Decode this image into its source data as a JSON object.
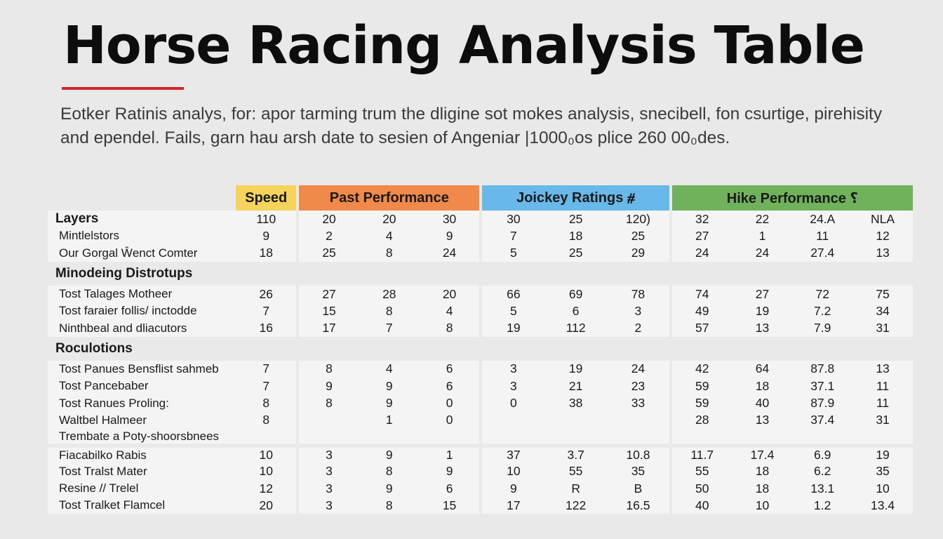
{
  "title": "Horse Racing Analysis Table",
  "intro": "Eotker Ratinis analys, for: apor tarming trum the dligine sot mokes analysis, snecibell, fon csurtige, pirehisity and ependel. Fails, garn hau arsh date to sesien of Angeniar |1000₀os plice 260 00₀des.",
  "colors": {
    "title_rule": "#cc2a2a",
    "speed": "#f6d35a",
    "past_performance": "#f1894a",
    "jockey_ratings": "#68b8ea",
    "hike_performance": "#70b25c"
  },
  "groups": {
    "speed": "Speed",
    "past": "Past Performance",
    "jockey": "Joickey Ratings ⧣",
    "hike": "Hike Performance ⸮"
  },
  "rows": [
    {
      "label": "Layers",
      "kind": "head",
      "values": [
        "110",
        "20",
        "20",
        "30",
        "30",
        "25",
        "120)",
        "32",
        "22",
        "24.A",
        "NLA"
      ]
    },
    {
      "label": "Mintlelstors",
      "values": [
        "9",
        "2",
        "4",
        "9",
        "7",
        "18",
        "25",
        "27",
        "1",
        "11",
        "12"
      ]
    },
    {
      "label": "Our Gorgal Ŵenct Comter",
      "values": [
        "18",
        "25",
        "8",
        "24",
        "5",
        "25",
        "29",
        "24",
        "24",
        "27.4",
        "13"
      ]
    },
    {
      "label": "Minodeing Distrotups",
      "kind": "section"
    },
    {
      "label": "Tost Talages Motheer",
      "values": [
        "26",
        "27",
        "28",
        "20",
        "66",
        "69",
        "78",
        "74",
        "27",
        "72",
        "75"
      ]
    },
    {
      "label": "Tost faraier follis/ inctodde",
      "values": [
        "7",
        "15",
        "8",
        "4",
        "5",
        "6",
        "3",
        "49",
        "19",
        "7.2",
        "34"
      ]
    },
    {
      "label": "Ninthbeal and dliacutors",
      "values": [
        "16",
        "17",
        "7",
        "8",
        "19",
        "112",
        "2",
        "57",
        "13",
        "7.9",
        "31"
      ]
    },
    {
      "label": "Roculotions",
      "kind": "section"
    },
    {
      "label": "Tost  Panues Bensflist sahmeb",
      "values": [
        "7",
        "8",
        "4",
        "6",
        "3",
        "19",
        "24",
        "42",
        "64",
        "87.8",
        "13"
      ]
    },
    {
      "label": "Tost  Pancebaber",
      "values": [
        "7",
        "9",
        "9",
        "6",
        "3",
        "21",
        "23",
        "59",
        "18",
        "37.1",
        "11"
      ]
    },
    {
      "label": "Tost  Ranues Proling:",
      "values": [
        "8",
        "8",
        "9",
        "0",
        "0",
        "38",
        "33",
        "59",
        "40",
        "87.9",
        "11"
      ]
    },
    {
      "label": "Waltbel Halmeer",
      "values": [
        "8",
        "",
        "1",
        "0",
        "",
        "",
        "",
        "28",
        "13",
        "37.4",
        "31"
      ]
    },
    {
      "label": "Trembate a Poty-shoorsbnees",
      "values": [
        "",
        "",
        "",
        "",
        "",
        "",
        "",
        "",
        "",
        "",
        ""
      ]
    },
    {
      "label": "Fiacabilko Rabis",
      "values": [
        "10",
        "3",
        "9",
        "1",
        "37",
        "3.7",
        "10.8",
        "11.7",
        "17.4",
        "6.9",
        "19"
      ]
    },
    {
      "label": "Tost Tralst Mater",
      "values": [
        "10",
        "3",
        "8",
        "9",
        "10",
        "55",
        "35",
        "55",
        "18",
        "6.2",
        "35"
      ]
    },
    {
      "label": "Resine // Trelel",
      "values": [
        "12",
        "3",
        "9",
        "6",
        "9",
        "R",
        "B",
        "50",
        "18",
        "13.1",
        "10"
      ]
    },
    {
      "label": "Tost Tralket Flamcel",
      "values": [
        "20",
        "3",
        "8",
        "15",
        "17",
        "122",
        "16.5",
        "40",
        "10",
        "1.2",
        "13.4"
      ]
    }
  ]
}
